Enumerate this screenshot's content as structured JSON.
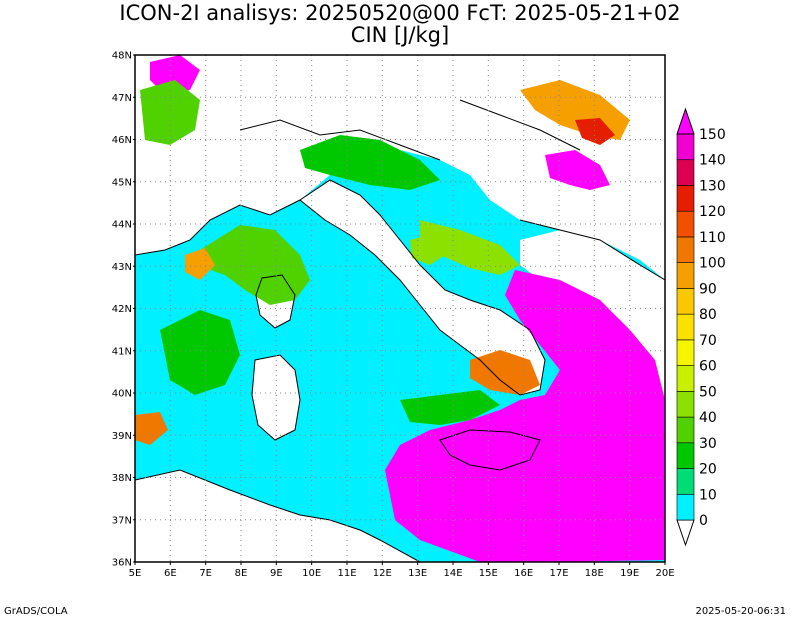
{
  "title": {
    "line1": "ICON-2I analisys: 20250520@00 FcT: 2025-05-21+02",
    "line2": "CIN [J/kg]"
  },
  "map": {
    "lat_labels": [
      "48N",
      "47N",
      "46N",
      "45N",
      "44N",
      "43N",
      "42N",
      "41N",
      "40N",
      "39N",
      "38N",
      "37N",
      "36N"
    ],
    "lon_labels": [
      "5E",
      "6E",
      "7E",
      "8E",
      "9E",
      "10E",
      "11E",
      "12E",
      "13E",
      "14E",
      "15E",
      "16E",
      "17E",
      "18E",
      "19E",
      "20E"
    ],
    "lat_range": [
      36,
      48
    ],
    "lon_range": [
      5,
      20
    ],
    "grid": true
  },
  "colorbar": {
    "labels": [
      "0",
      "10",
      "20",
      "30",
      "40",
      "50",
      "60",
      "70",
      "80",
      "90",
      "100",
      "110",
      "120",
      "130",
      "140",
      "150"
    ],
    "colors": [
      "#00f0ff",
      "#00dc78",
      "#00c800",
      "#50d200",
      "#8ce100",
      "#c8f000",
      "#f5f500",
      "#fae100",
      "#fac800",
      "#f5a000",
      "#f07800",
      "#f05000",
      "#e61e00",
      "#dc0050",
      "#f000d2",
      "#ff00ff"
    ]
  },
  "footer": {
    "left": "GrADS/COLA",
    "right": "2025-05-20-06:31"
  }
}
